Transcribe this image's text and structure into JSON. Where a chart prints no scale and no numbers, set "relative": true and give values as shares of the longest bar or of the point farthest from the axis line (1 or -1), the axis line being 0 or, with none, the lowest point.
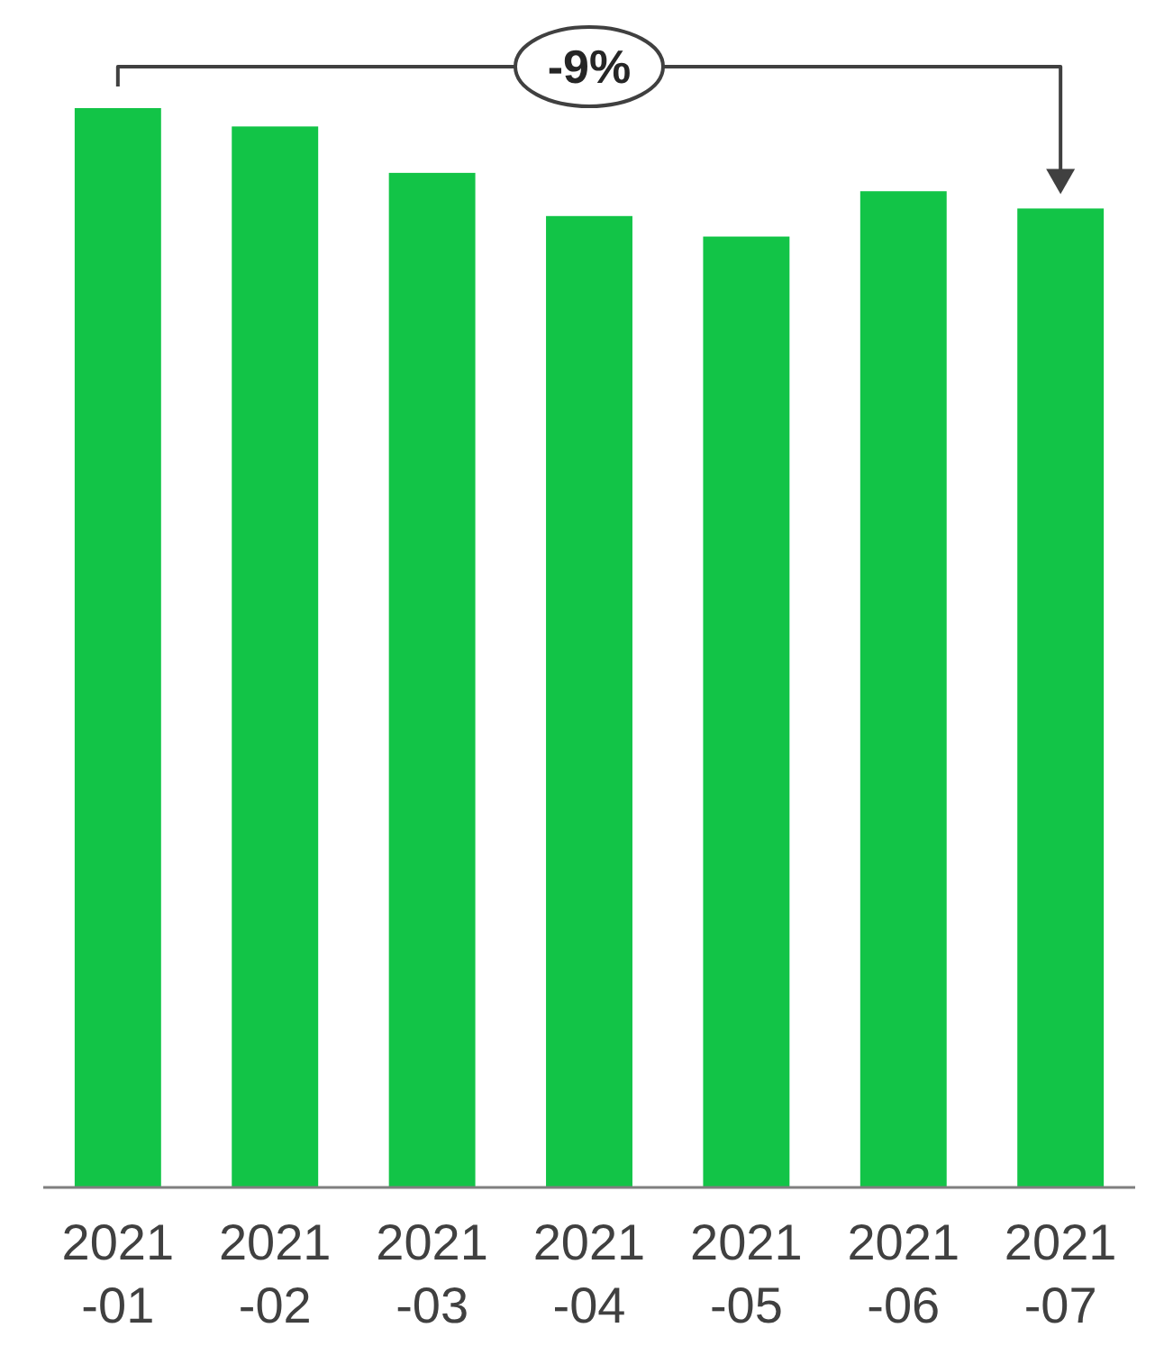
{
  "chart_data": {
    "type": "bar",
    "relative": true,
    "categories": [
      "2021-01",
      "2021-02",
      "2021-03",
      "2021-04",
      "2021-05",
      "2021-06",
      "2021-07"
    ],
    "values": [
      1,
      0.983,
      0.94,
      0.9,
      0.881,
      0.923,
      0.907
    ],
    "color": "#12c447",
    "annotations": [
      "-9%"
    ]
  }
}
